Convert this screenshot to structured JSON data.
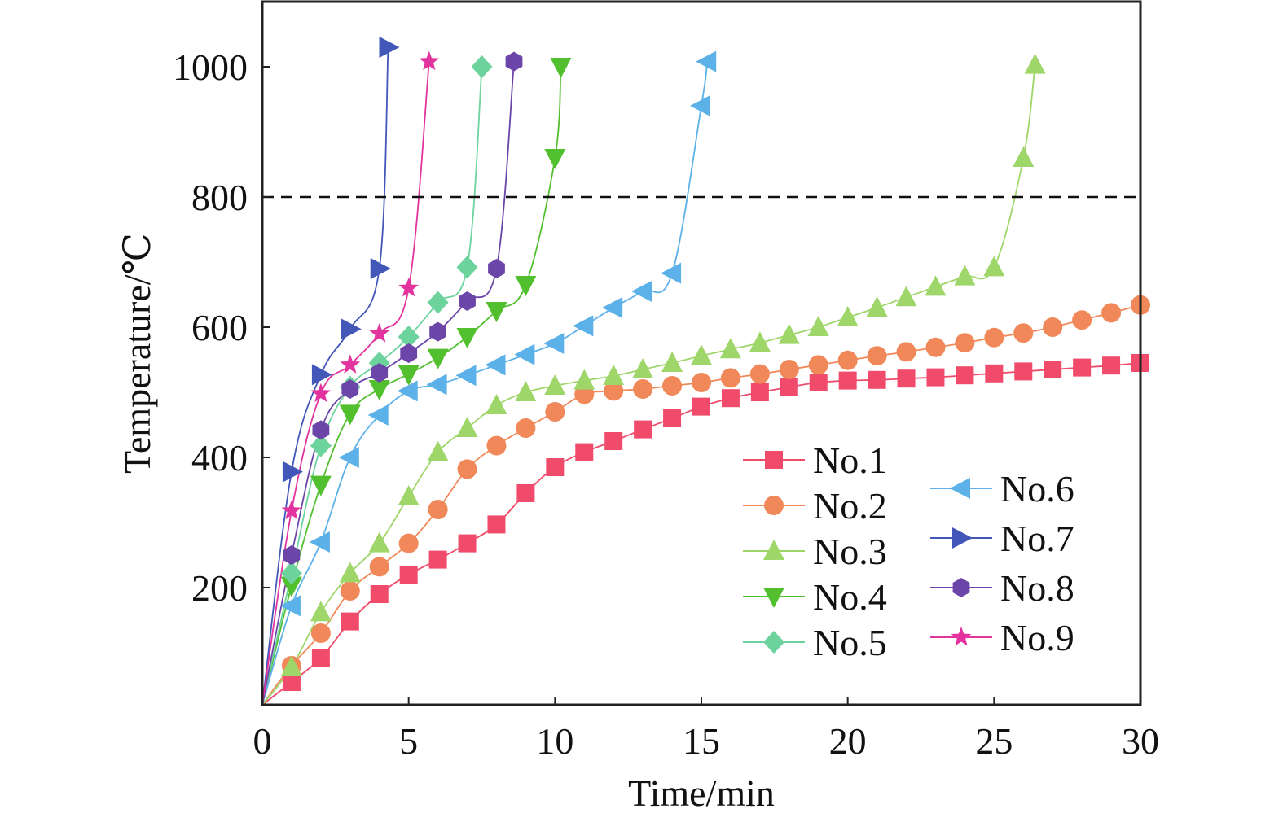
{
  "chart_data": {
    "type": "line",
    "xlabel": "Time/min",
    "ylabel": "Temperature/℃",
    "xlim": [
      0,
      30
    ],
    "ylim": [
      20,
      1100
    ],
    "xticks": [
      0,
      5,
      10,
      15,
      20,
      25,
      30
    ],
    "yticks": [
      200,
      400,
      600,
      800,
      1000
    ],
    "reference_line": {
      "y": 800,
      "style": "dashed"
    },
    "grid": false,
    "legend_position": "bottom-right",
    "series": [
      {
        "name": "No.1",
        "color": "#f04b6b",
        "marker": "square",
        "points": [
          [
            0,
            20
          ],
          [
            1,
            55
          ],
          [
            2,
            92
          ],
          [
            3,
            148
          ],
          [
            4,
            190
          ],
          [
            5,
            220
          ],
          [
            6,
            243
          ],
          [
            7,
            268
          ],
          [
            8,
            297
          ],
          [
            9,
            345
          ],
          [
            10,
            385
          ],
          [
            11,
            408
          ],
          [
            12,
            425
          ],
          [
            13,
            443
          ],
          [
            14,
            460
          ],
          [
            15,
            478
          ],
          [
            16,
            491
          ],
          [
            17,
            500
          ],
          [
            18,
            508
          ],
          [
            19,
            515
          ],
          [
            20,
            518
          ],
          [
            21,
            519
          ],
          [
            22,
            521
          ],
          [
            23,
            523
          ],
          [
            24,
            526
          ],
          [
            25,
            529
          ],
          [
            26,
            532
          ],
          [
            27,
            535
          ],
          [
            28,
            538
          ],
          [
            29,
            541
          ],
          [
            30,
            545
          ]
        ]
      },
      {
        "name": "No.2",
        "color": "#f0885a",
        "marker": "circle",
        "points": [
          [
            0,
            20
          ],
          [
            1,
            80
          ],
          [
            2,
            130
          ],
          [
            3,
            195
          ],
          [
            4,
            232
          ],
          [
            5,
            268
          ],
          [
            6,
            320
          ],
          [
            7,
            382
          ],
          [
            8,
            418
          ],
          [
            9,
            445
          ],
          [
            10,
            470
          ],
          [
            11,
            497
          ],
          [
            12,
            502
          ],
          [
            13,
            505
          ],
          [
            14,
            510
          ],
          [
            15,
            515
          ],
          [
            16,
            522
          ],
          [
            17,
            528
          ],
          [
            18,
            535
          ],
          [
            19,
            542
          ],
          [
            20,
            549
          ],
          [
            21,
            556
          ],
          [
            22,
            562
          ],
          [
            23,
            569
          ],
          [
            24,
            576
          ],
          [
            25,
            584
          ],
          [
            26,
            591
          ],
          [
            27,
            600
          ],
          [
            28,
            611
          ],
          [
            29,
            622
          ],
          [
            30,
            634
          ]
        ]
      },
      {
        "name": "No.3",
        "color": "#9fd66a",
        "marker": "triangle-up",
        "points": [
          [
            0,
            20
          ],
          [
            1,
            78
          ],
          [
            2,
            162
          ],
          [
            3,
            222
          ],
          [
            4,
            268
          ],
          [
            5,
            340
          ],
          [
            6,
            408
          ],
          [
            7,
            445
          ],
          [
            8,
            480
          ],
          [
            9,
            500
          ],
          [
            10,
            510
          ],
          [
            11,
            518
          ],
          [
            12,
            525
          ],
          [
            13,
            535
          ],
          [
            14,
            545
          ],
          [
            15,
            556
          ],
          [
            16,
            566
          ],
          [
            17,
            576
          ],
          [
            18,
            588
          ],
          [
            19,
            600
          ],
          [
            20,
            615
          ],
          [
            21,
            630
          ],
          [
            22,
            646
          ],
          [
            23,
            662
          ],
          [
            24,
            678
          ],
          [
            25,
            692
          ],
          [
            26,
            860
          ],
          [
            26.4,
            1003
          ]
        ]
      },
      {
        "name": "No.4",
        "color": "#52c02e",
        "marker": "triangle-down",
        "points": [
          [
            0,
            20
          ],
          [
            1,
            203
          ],
          [
            2,
            358
          ],
          [
            3,
            467
          ],
          [
            4,
            505
          ],
          [
            5,
            528
          ],
          [
            6,
            553
          ],
          [
            7,
            585
          ],
          [
            8,
            625
          ],
          [
            9,
            665
          ],
          [
            10,
            860
          ],
          [
            10.2,
            1000
          ]
        ]
      },
      {
        "name": "No.5",
        "color": "#6dd39d",
        "marker": "diamond",
        "points": [
          [
            0,
            20
          ],
          [
            1,
            222
          ],
          [
            2,
            418
          ],
          [
            3,
            508
          ],
          [
            4,
            545
          ],
          [
            5,
            585
          ],
          [
            6,
            638
          ],
          [
            7,
            692
          ],
          [
            7.5,
            1000
          ]
        ]
      },
      {
        "name": "No.6",
        "color": "#5bb1e8",
        "marker": "triangle-left",
        "points": [
          [
            0,
            20
          ],
          [
            1,
            172
          ],
          [
            2,
            270
          ],
          [
            3,
            400
          ],
          [
            4,
            465
          ],
          [
            5,
            502
          ],
          [
            6,
            512
          ],
          [
            7,
            526
          ],
          [
            8,
            542
          ],
          [
            9,
            558
          ],
          [
            10,
            575
          ],
          [
            11,
            602
          ],
          [
            12,
            630
          ],
          [
            13,
            655
          ],
          [
            14,
            683
          ],
          [
            15,
            940
          ],
          [
            15.2,
            1008
          ]
        ]
      },
      {
        "name": "No.7",
        "color": "#4257b8",
        "marker": "triangle-right",
        "points": [
          [
            0,
            20
          ],
          [
            1,
            378
          ],
          [
            2,
            527
          ],
          [
            3,
            597
          ],
          [
            4,
            690
          ],
          [
            4.3,
            1030
          ]
        ]
      },
      {
        "name": "No.8",
        "color": "#6b45a8",
        "marker": "hexagon",
        "points": [
          [
            0,
            20
          ],
          [
            1,
            250
          ],
          [
            2,
            442
          ],
          [
            3,
            505
          ],
          [
            4,
            530
          ],
          [
            5,
            560
          ],
          [
            6,
            593
          ],
          [
            7,
            640
          ],
          [
            8,
            690
          ],
          [
            8.6,
            1008
          ]
        ]
      },
      {
        "name": "No.9",
        "color": "#e3339f",
        "marker": "star",
        "points": [
          [
            0,
            20
          ],
          [
            1,
            318
          ],
          [
            2,
            498
          ],
          [
            3,
            542
          ],
          [
            4,
            590
          ],
          [
            5,
            660
          ],
          [
            5.7,
            1008
          ]
        ]
      }
    ]
  }
}
